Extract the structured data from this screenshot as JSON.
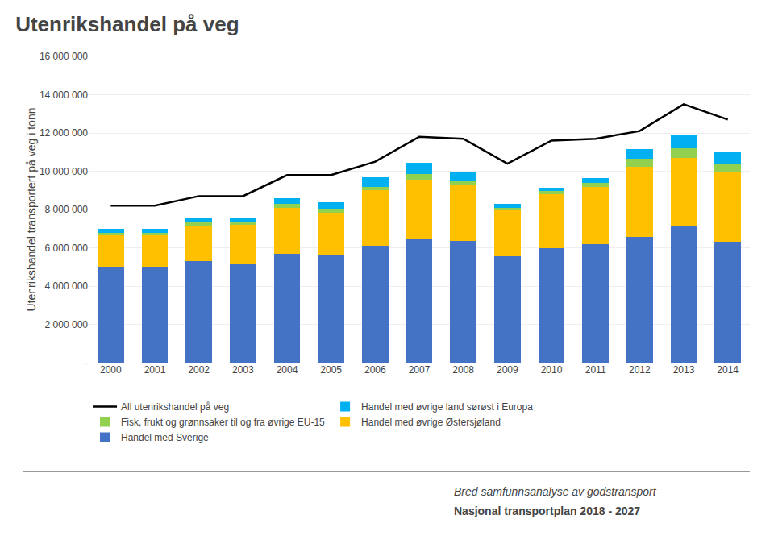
{
  "chart_data": {
    "type": "bar",
    "title": "Utenrikshandel på veg",
    "ylabel": "Utenrikshandel transportert på veg i tonn",
    "categories": [
      "2000",
      "2001",
      "2002",
      "2003",
      "2004",
      "2005",
      "2006",
      "2007",
      "2008",
      "2009",
      "2010",
      "2011",
      "2012",
      "2013",
      "2014"
    ],
    "series": [
      {
        "name": "Handel med Sverige",
        "type": "bar",
        "color": "#4472C4",
        "values": [
          5000000,
          5000000,
          5300000,
          5200000,
          5700000,
          5650000,
          6100000,
          6500000,
          6350000,
          5550000,
          6000000,
          6200000,
          6550000,
          7100000,
          6300000
        ]
      },
      {
        "name": "Handel med øvrige Østersjøland",
        "type": "bar",
        "color": "#FFC000",
        "values": [
          1700000,
          1650000,
          1800000,
          2000000,
          2400000,
          2200000,
          2900000,
          3050000,
          2900000,
          2400000,
          2800000,
          3000000,
          3700000,
          3600000,
          3700000
        ]
      },
      {
        "name": "Fisk, frukt og grønnsaker til og fra øvrige EU-15",
        "type": "bar",
        "color": "#92D050",
        "values": [
          100000,
          150000,
          250000,
          150000,
          200000,
          200000,
          200000,
          300000,
          250000,
          150000,
          150000,
          200000,
          400000,
          500000,
          400000
        ]
      },
      {
        "name": "Handel med øvrige land sørøst i Europa",
        "type": "bar",
        "color": "#00B0F0",
        "values": [
          200000,
          200000,
          200000,
          200000,
          300000,
          350000,
          500000,
          600000,
          500000,
          200000,
          200000,
          250000,
          500000,
          700000,
          600000
        ]
      },
      {
        "name": "All utenrikshandel på veg",
        "type": "line",
        "color": "#000000",
        "values": [
          8200000,
          8200000,
          8700000,
          8700000,
          9800000,
          9800000,
          10500000,
          11800000,
          11700000,
          10400000,
          11600000,
          11700000,
          12100000,
          13500000,
          12700000
        ]
      }
    ],
    "ylim": [
      0,
      16000000
    ],
    "yticks": [
      {
        "value": 0,
        "label": "-"
      },
      {
        "value": 2000000,
        "label": "2 000 000"
      },
      {
        "value": 4000000,
        "label": "4 000 000"
      },
      {
        "value": 6000000,
        "label": "6 000 000"
      },
      {
        "value": 8000000,
        "label": "8 000 000"
      },
      {
        "value": 10000000,
        "label": "10 000 000"
      },
      {
        "value": 12000000,
        "label": "12 000 000"
      },
      {
        "value": 14000000,
        "label": "14 000 000"
      },
      {
        "value": 16000000,
        "label": "16 000 000"
      }
    ],
    "stacked": true,
    "grid": true,
    "legend": "bottom",
    "annotations": [
      "Bred samfunnsanalyse av godstransport",
      "Nasjonal transportplan 2018 - 2027"
    ]
  }
}
